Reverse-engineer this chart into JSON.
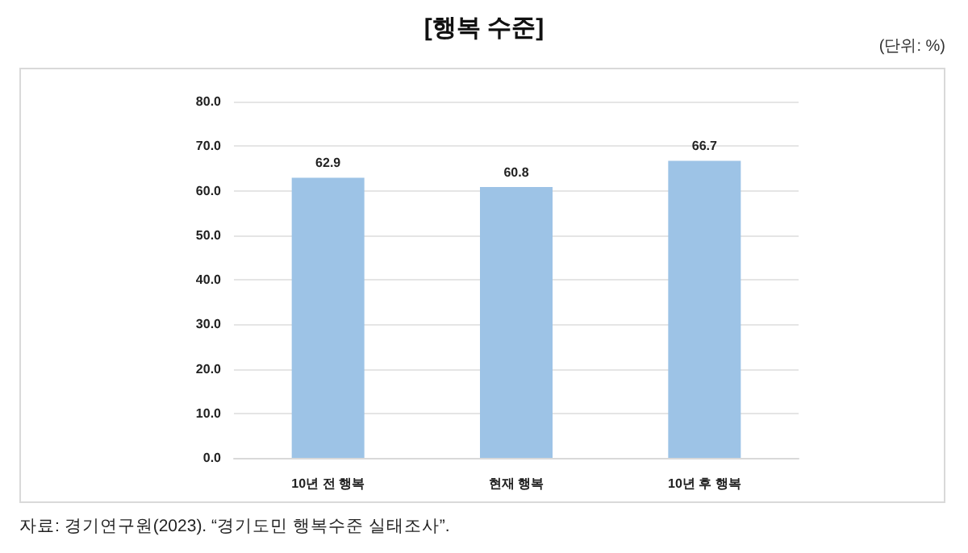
{
  "chart_data": {
    "type": "bar",
    "title": "[행복 수준]",
    "annotations": [
      "(단위: %)",
      "자료: 경기연구원(2023). “경기도민 행복수준 실태조사”."
    ],
    "categories": [
      "10년 전 행복",
      "현재 행복",
      "10년 후 행복"
    ],
    "values": [
      62.9,
      60.8,
      66.7
    ],
    "color": "#9dc3e6",
    "ylim": [
      0,
      80
    ],
    "yticks": [
      {
        "value": 0,
        "label": "0.0"
      },
      {
        "value": 10,
        "label": "10.0"
      },
      {
        "value": 20,
        "label": "20.0"
      },
      {
        "value": 30,
        "label": "30.0"
      },
      {
        "value": 40,
        "label": "40.0"
      },
      {
        "value": 50,
        "label": "50.0"
      },
      {
        "value": 60,
        "label": "60.0"
      },
      {
        "value": 70,
        "label": "70.0"
      },
      {
        "value": 80,
        "label": "80.0"
      }
    ],
    "grid": "y",
    "data_labels": true
  }
}
